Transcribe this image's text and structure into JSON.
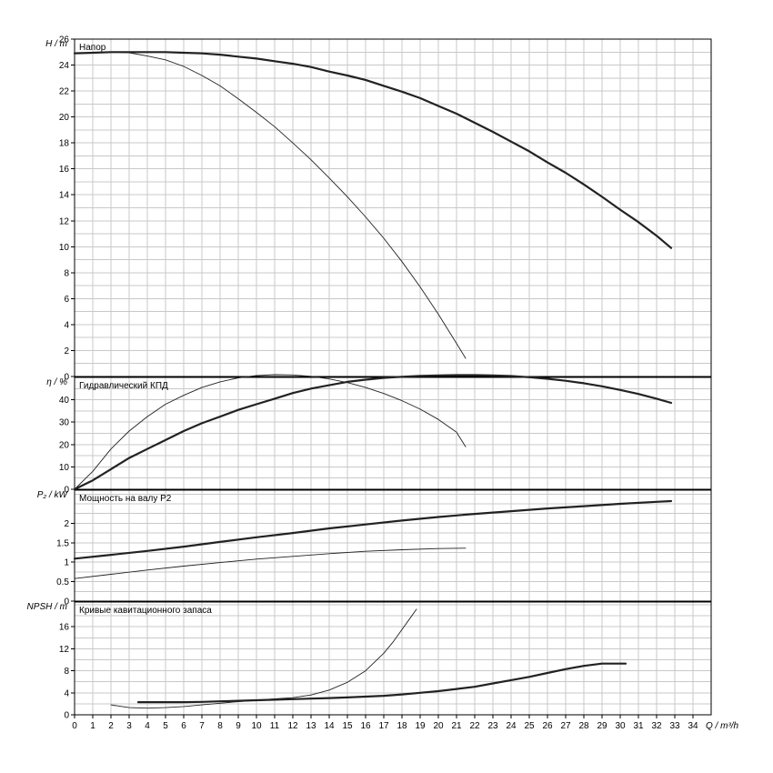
{
  "chart_data": [
    {
      "type": "line",
      "title": "Напор",
      "ylabel": "H / m",
      "ylim": [
        0,
        26
      ],
      "yticks": [
        0,
        2,
        4,
        6,
        8,
        10,
        12,
        14,
        16,
        18,
        20,
        22,
        24,
        26
      ],
      "xlim": [
        0,
        35
      ],
      "grid": true,
      "series": [
        {
          "x": [
            0,
            1,
            2,
            3,
            4,
            5,
            6,
            7,
            8,
            9,
            10,
            11,
            12,
            13,
            14,
            15,
            16,
            17,
            18,
            19,
            20,
            21,
            22,
            23,
            24,
            25,
            26,
            27,
            28,
            29,
            30,
            31,
            32,
            32.8
          ],
          "y": [
            24.9,
            24.95,
            25.0,
            25.0,
            25.0,
            25.0,
            24.95,
            24.9,
            24.8,
            24.65,
            24.5,
            24.3,
            24.1,
            23.85,
            23.5,
            23.2,
            22.85,
            22.4,
            21.95,
            21.45,
            20.85,
            20.25,
            19.55,
            18.85,
            18.1,
            17.35,
            16.5,
            15.7,
            14.8,
            13.85,
            12.85,
            11.9,
            10.85,
            9.9
          ]
        },
        {
          "x": [
            0,
            1,
            2,
            3,
            4,
            5,
            6,
            7,
            8,
            9,
            10,
            11,
            12,
            13,
            14,
            15,
            16,
            17,
            18,
            19,
            20,
            21,
            21.5
          ],
          "y": [
            24.9,
            24.95,
            25.0,
            24.95,
            24.7,
            24.4,
            23.9,
            23.2,
            22.4,
            21.4,
            20.35,
            19.25,
            18.0,
            16.7,
            15.3,
            13.85,
            12.3,
            10.65,
            8.85,
            6.9,
            4.8,
            2.55,
            1.4
          ]
        }
      ]
    },
    {
      "type": "line",
      "title": "Гидравлический КПД",
      "ylabel": "η / %",
      "ylim": [
        0,
        50
      ],
      "yticks": [
        0,
        10,
        20,
        30,
        40
      ],
      "xlim": [
        0,
        35
      ],
      "grid": true,
      "series": [
        {
          "x": [
            0,
            1,
            2,
            3,
            4,
            5,
            6,
            7,
            8,
            9,
            10,
            11,
            12,
            13,
            14,
            15,
            16,
            17,
            18,
            19,
            20,
            21,
            22,
            23,
            24,
            25,
            26,
            27,
            28,
            29,
            30,
            31,
            32,
            32.8
          ],
          "y": [
            0,
            4,
            9,
            14,
            18,
            22,
            26,
            29.5,
            32.5,
            35.5,
            38,
            40.5,
            43,
            45,
            46.5,
            48,
            49,
            49.8,
            50.3,
            50.7,
            50.9,
            51,
            51,
            50.9,
            50.6,
            50.1,
            49.4,
            48.5,
            47.4,
            46.0,
            44.4,
            42.6,
            40.5,
            38.6
          ]
        },
        {
          "x": [
            0,
            1,
            2,
            3,
            4,
            5,
            6,
            7,
            8,
            9,
            10,
            11,
            12,
            13,
            14,
            15,
            16,
            17,
            18,
            19,
            20,
            21,
            21.5
          ],
          "y": [
            0,
            8,
            18,
            26,
            32.5,
            38,
            42,
            45.5,
            48,
            49.8,
            50.8,
            51.2,
            51.1,
            50.5,
            49.3,
            47.7,
            45.5,
            42.8,
            39.6,
            35.8,
            31.2,
            25.5,
            19
          ]
        }
      ]
    },
    {
      "type": "line",
      "title": "Мощность на валу P2",
      "ylabel": "P₂ / kW",
      "ylim": [
        0,
        2.85
      ],
      "yticks": [
        0,
        0.5,
        1,
        1.5,
        2
      ],
      "ytick_labels": [
        "0",
        "0.5",
        "1",
        "1.5",
        "2"
      ],
      "xlim": [
        0,
        35
      ],
      "grid": true,
      "series": [
        {
          "x": [
            0,
            2,
            4,
            6,
            8,
            10,
            12,
            14,
            16,
            18,
            20,
            22,
            24,
            26,
            28,
            30,
            32,
            32.8
          ],
          "y": [
            1.09,
            1.19,
            1.29,
            1.4,
            1.52,
            1.64,
            1.75,
            1.87,
            1.97,
            2.07,
            2.16,
            2.24,
            2.31,
            2.38,
            2.44,
            2.5,
            2.55,
            2.57
          ]
        },
        {
          "x": [
            0,
            2,
            4,
            6,
            8,
            10,
            12,
            14,
            16,
            18,
            20,
            21.5
          ],
          "y": [
            0.58,
            0.69,
            0.8,
            0.9,
            0.99,
            1.08,
            1.15,
            1.22,
            1.28,
            1.32,
            1.35,
            1.36
          ]
        }
      ]
    },
    {
      "type": "line",
      "title": "Кривые кавитационного запаса",
      "ylabel": "NPSH / m",
      "xlabel": "Q / m³/h",
      "ylim": [
        0,
        20.5
      ],
      "yticks": [
        0,
        4,
        8,
        12,
        16
      ],
      "xlim": [
        0,
        35
      ],
      "xticks": [
        0,
        1,
        2,
        3,
        4,
        5,
        6,
        7,
        8,
        9,
        10,
        11,
        12,
        13,
        14,
        15,
        16,
        17,
        18,
        19,
        20,
        21,
        22,
        23,
        24,
        25,
        26,
        27,
        28,
        29,
        30,
        31,
        32,
        33,
        34
      ],
      "grid": true,
      "series": [
        {
          "x": [
            3.5,
            4,
            5,
            6,
            7,
            8,
            9,
            10,
            11,
            12,
            13,
            14,
            15,
            16,
            17,
            18,
            19,
            20,
            21,
            22,
            23,
            24,
            25,
            26,
            27,
            28,
            29,
            30,
            30.3
          ],
          "y": [
            2.3,
            2.3,
            2.3,
            2.3,
            2.35,
            2.45,
            2.55,
            2.65,
            2.75,
            2.85,
            2.95,
            3.05,
            3.15,
            3.3,
            3.45,
            3.7,
            4.0,
            4.3,
            4.7,
            5.1,
            5.7,
            6.3,
            6.9,
            7.6,
            8.3,
            8.9,
            9.3,
            9.3,
            9.3
          ]
        },
        {
          "x": [
            2,
            3,
            4,
            5,
            6,
            7,
            8,
            9,
            10,
            11,
            12,
            13,
            14,
            15,
            16,
            17,
            17.5,
            18,
            18.5,
            18.8
          ],
          "y": [
            1.8,
            1.3,
            1.2,
            1.3,
            1.5,
            1.8,
            2.1,
            2.4,
            2.65,
            2.9,
            3.1,
            3.6,
            4.5,
            5.9,
            8.0,
            11.2,
            13.2,
            15.5,
            17.8,
            19.2
          ]
        }
      ]
    }
  ]
}
